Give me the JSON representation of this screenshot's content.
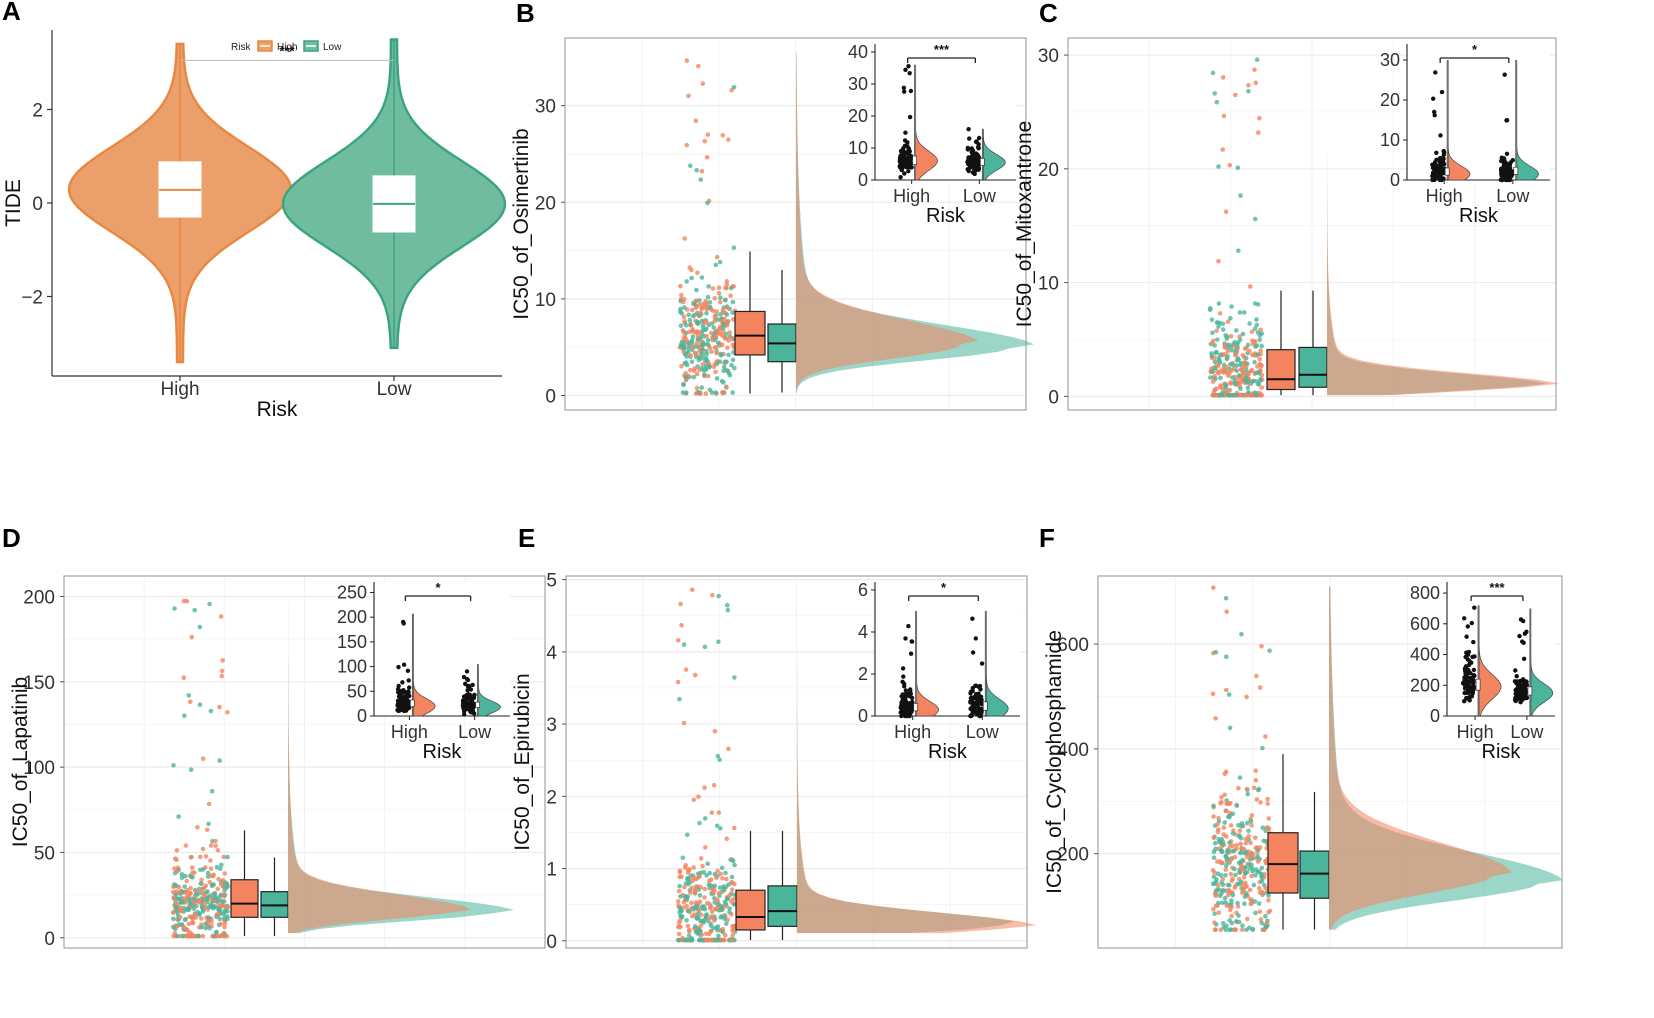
{
  "colors": {
    "high": "#f4845f",
    "low": "#4ab59a",
    "high_violin": "#e8873f",
    "low_violin": "#3aa380",
    "overlap": "#8a9e7a"
  },
  "chart_data": [
    {
      "id": "A",
      "panel_label": "A",
      "type": "violin",
      "xlabel": "Risk",
      "ylabel": "TIDE",
      "categories": [
        "High",
        "Low"
      ],
      "ylim": [
        -3.7,
        3.7
      ],
      "yticks": [
        -2,
        0,
        2
      ],
      "ytick_labels": [
        "−2",
        "0",
        "2"
      ],
      "legend": {
        "title": "Risk",
        "entries": [
          "High",
          "Low"
        ],
        "position": "top"
      },
      "significance": "***",
      "series": [
        {
          "name": "High",
          "median": 0.28,
          "q1": -0.3,
          "q3": 0.88,
          "min": -3.4,
          "max": 3.4
        },
        {
          "name": "Low",
          "median": -0.02,
          "q1": -0.62,
          "q3": 0.58,
          "min": -3.1,
          "max": 3.5
        }
      ]
    },
    {
      "id": "B",
      "panel_label": "B",
      "type": "raincloud",
      "ylabel": "IC50_of_Osimertinib",
      "ylim": [
        -1.5,
        37
      ],
      "yticks": [
        0,
        10,
        20,
        30
      ],
      "boxes": [
        {
          "name": "High",
          "median": 6.2,
          "q1": 4.2,
          "q3": 8.7,
          "lo": 0.2,
          "hi": 14.9
        },
        {
          "name": "Low",
          "median": 5.4,
          "q1": 3.5,
          "q3": 7.4,
          "lo": 0.3,
          "hi": 13
        }
      ],
      "density": {
        "mode": 5.3,
        "low_mode": 5.0,
        "width": 2.4,
        "tail_end": 35.5,
        "high_scale": 0.77,
        "low_scale": 1.0
      },
      "inset": {
        "xlabel": "Risk",
        "categories": [
          "High",
          "Low"
        ],
        "significance": "***",
        "ylim": [
          0,
          40
        ],
        "yticks": [
          0,
          10,
          20,
          30,
          40
        ],
        "series": [
          {
            "name": "High",
            "median": 6,
            "spread": 3,
            "max": 36,
            "mode": 6
          },
          {
            "name": "Low",
            "median": 5.5,
            "spread": 2.5,
            "max": 16,
            "mode": 5.5
          }
        ]
      }
    },
    {
      "id": "C",
      "panel_label": "C",
      "type": "raincloud",
      "ylabel": "IC50_of_Mitoxantrone",
      "ylim": [
        -1.2,
        31.5
      ],
      "yticks": [
        0,
        10,
        20,
        30
      ],
      "boxes": [
        {
          "name": "High",
          "median": 1.5,
          "q1": 0.6,
          "q3": 4.1,
          "lo": 0.1,
          "hi": 9.3
        },
        {
          "name": "Low",
          "median": 1.9,
          "q1": 0.8,
          "q3": 4.3,
          "lo": 0.1,
          "hi": 9.3
        }
      ],
      "density": {
        "mode": 1.0,
        "low_mode": 1.0,
        "width": 1.0,
        "tail_end": 30.5,
        "high_scale": 1.0,
        "low_scale": 0.95
      },
      "inset": {
        "xlabel": "Risk",
        "categories": [
          "High",
          "Low"
        ],
        "significance": "*",
        "ylim": [
          0,
          32
        ],
        "yticks": [
          0,
          10,
          20,
          30
        ],
        "series": [
          {
            "name": "High",
            "median": 2,
            "spread": 2,
            "max": 30,
            "mode": 1.5
          },
          {
            "name": "Low",
            "median": 2.2,
            "spread": 2,
            "max": 30,
            "mode": 1.5
          }
        ]
      }
    },
    {
      "id": "D",
      "panel_label": "D",
      "type": "raincloud",
      "ylabel": "IC50_of_Lapatinib",
      "ylim": [
        -6,
        212
      ],
      "yticks": [
        0,
        50,
        100,
        150,
        200
      ],
      "boxes": [
        {
          "name": "High",
          "median": 20,
          "q1": 12,
          "q3": 34,
          "lo": 1,
          "hi": 63
        },
        {
          "name": "Low",
          "median": 19,
          "q1": 12,
          "q3": 27,
          "lo": 1,
          "hi": 47
        }
      ],
      "density": {
        "mode": 16,
        "low_mode": 15,
        "width": 9,
        "tail_end": 207,
        "high_scale": 0.8,
        "low_scale": 1.0
      },
      "inset": {
        "xlabel": "Risk",
        "categories": [
          "High",
          "Low"
        ],
        "significance": "*",
        "ylim": [
          0,
          255
        ],
        "yticks": [
          0,
          50,
          100,
          150,
          200,
          250
        ],
        "series": [
          {
            "name": "High",
            "median": 25,
            "spread": 15,
            "max": 207,
            "mode": 20
          },
          {
            "name": "Low",
            "median": 22,
            "spread": 12,
            "max": 105,
            "mode": 18
          }
        ]
      }
    },
    {
      "id": "E",
      "panel_label": "E",
      "type": "raincloud",
      "ylabel": "IC50_of_Epirubicin",
      "ylim": [
        -0.1,
        5.05
      ],
      "yticks": [
        0,
        1,
        2,
        3,
        4,
        5
      ],
      "boxes": [
        {
          "name": "High",
          "median": 0.33,
          "q1": 0.15,
          "q3": 0.7,
          "lo": 0.01,
          "hi": 1.52
        },
        {
          "name": "Low",
          "median": 0.41,
          "q1": 0.2,
          "q3": 0.76,
          "lo": 0.01,
          "hi": 1.52
        }
      ],
      "density": {
        "mode": 0.2,
        "low_mode": 0.22,
        "width": 0.18,
        "tail_end": 5.0,
        "high_scale": 1.0,
        "low_scale": 0.95
      },
      "inset": {
        "xlabel": "Risk",
        "categories": [
          "High",
          "Low"
        ],
        "significance": "*",
        "ylim": [
          0,
          6
        ],
        "yticks": [
          0,
          2,
          4,
          6
        ],
        "series": [
          {
            "name": "High",
            "median": 0.4,
            "spread": 0.4,
            "max": 5,
            "mode": 0.3
          },
          {
            "name": "Low",
            "median": 0.45,
            "spread": 0.45,
            "max": 5,
            "mode": 0.35
          }
        ]
      }
    },
    {
      "id": "F",
      "panel_label": "F",
      "type": "raincloud",
      "ylabel": "IC50_of_Cyclophosphamide",
      "ylim": [
        20,
        730
      ],
      "yticks": [
        200,
        400,
        600
      ],
      "boxes": [
        {
          "name": "High",
          "median": 180,
          "q1": 125,
          "q3": 240,
          "lo": 55,
          "hi": 390
        },
        {
          "name": "Low",
          "median": 162,
          "q1": 115,
          "q3": 205,
          "lo": 55,
          "hi": 318
        }
      ],
      "density": {
        "mode": 160,
        "low_mode": 145,
        "width": 60,
        "tail_end": 710,
        "high_scale": 0.78,
        "low_scale": 1.0
      },
      "inset": {
        "xlabel": "Risk",
        "categories": [
          "High",
          "Low"
        ],
        "significance": "***",
        "ylim": [
          0,
          820
        ],
        "yticks": [
          0,
          200,
          400,
          600,
          800
        ],
        "series": [
          {
            "name": "High",
            "median": 200,
            "spread": 80,
            "max": 720,
            "mode": 190
          },
          {
            "name": "Low",
            "median": 160,
            "spread": 60,
            "max": 700,
            "mode": 150
          }
        ]
      }
    }
  ]
}
